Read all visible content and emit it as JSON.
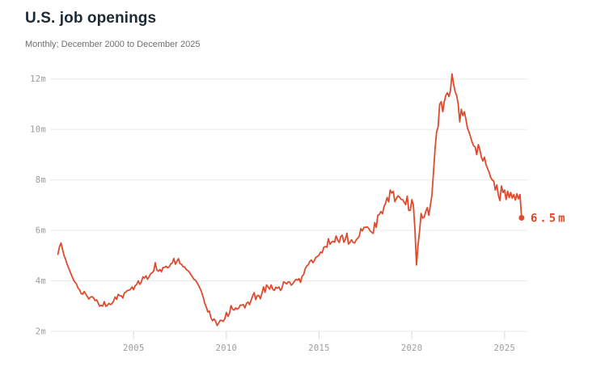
{
  "header": {
    "title": "U.S. job openings",
    "subtitle": "Monthly; December 2000 to December 2025"
  },
  "chart_data": {
    "type": "line",
    "title": "U.S. job openings",
    "subtitle": "Monthly; December 2000 to December 2025",
    "unit": "millions of job openings",
    "frequency": "monthly",
    "x_start": "December 2000",
    "x_end": "December 2025",
    "ylim": [
      2,
      12.4
    ],
    "grid": "horizontal",
    "legend": "none",
    "end_label": "6.5m",
    "last_value": 6.5,
    "colors": {
      "line": "#DD4B2E",
      "grid": "#ebebeb",
      "tick": "#d8d8d8",
      "axis_text": "#9b9b9b",
      "title_text": "#1c2b36",
      "subtitle_text": "#6b6f73"
    },
    "y_ticks": [
      {
        "value": 2,
        "label": "2m"
      },
      {
        "value": 4,
        "label": "4m"
      },
      {
        "value": 6,
        "label": "6m"
      },
      {
        "value": 8,
        "label": "8m"
      },
      {
        "value": 10,
        "label": "10m"
      },
      {
        "value": 12,
        "label": "12m"
      }
    ],
    "x_ticks": [
      {
        "year": 2005,
        "label": "2005"
      },
      {
        "year": 2010,
        "label": "2010"
      },
      {
        "year": 2015,
        "label": "2015"
      },
      {
        "year": 2020,
        "label": "2020"
      },
      {
        "year": 2025,
        "label": "2025"
      }
    ],
    "values_start_month": "2000-12",
    "values": [
      5.05,
      5.35,
      5.5,
      5.25,
      5.0,
      4.85,
      4.65,
      4.5,
      4.35,
      4.2,
      4.05,
      3.95,
      3.88,
      3.72,
      3.65,
      3.5,
      3.47,
      3.58,
      3.48,
      3.38,
      3.28,
      3.35,
      3.38,
      3.33,
      3.22,
      3.25,
      3.13,
      3.0,
      3.03,
      3.0,
      3.18,
      2.99,
      3.03,
      3.11,
      3.06,
      3.1,
      3.2,
      3.36,
      3.27,
      3.47,
      3.41,
      3.41,
      3.32,
      3.52,
      3.56,
      3.62,
      3.63,
      3.67,
      3.76,
      3.65,
      3.81,
      3.86,
      4.0,
      3.86,
      3.96,
      4.16,
      4.11,
      4.2,
      4.06,
      4.17,
      4.28,
      4.32,
      4.4,
      4.72,
      4.43,
      4.38,
      4.45,
      4.36,
      4.53,
      4.53,
      4.58,
      4.52,
      4.55,
      4.67,
      4.71,
      4.89,
      4.66,
      4.77,
      4.88,
      4.68,
      4.66,
      4.56,
      4.55,
      4.45,
      4.41,
      4.35,
      4.25,
      4.16,
      4.06,
      4.03,
      3.93,
      3.82,
      3.7,
      3.55,
      3.36,
      3.11,
      2.97,
      2.77,
      2.8,
      2.54,
      2.42,
      2.49,
      2.41,
      2.23,
      2.33,
      2.44,
      2.43,
      2.4,
      2.5,
      2.75,
      2.59,
      2.71,
      3.02,
      2.88,
      2.84,
      2.93,
      2.88,
      2.92,
      3.04,
      3.04,
      3.06,
      2.93,
      3.11,
      3.16,
      3.06,
      3.23,
      3.41,
      3.53,
      3.26,
      3.42,
      3.42,
      3.29,
      3.5,
      3.76,
      3.55,
      3.84,
      3.76,
      3.67,
      3.84,
      3.67,
      3.62,
      3.75,
      3.71,
      3.76,
      3.62,
      3.72,
      3.96,
      3.93,
      3.88,
      3.96,
      3.95,
      3.83,
      3.89,
      3.98,
      4.06,
      4.03,
      4.09,
      3.94,
      4.19,
      4.25,
      4.48,
      4.59,
      4.64,
      4.77,
      4.83,
      4.72,
      4.82,
      4.94,
      4.97,
      5.03,
      5.14,
      5.11,
      5.33,
      5.36,
      5.33,
      5.67,
      5.45,
      5.53,
      5.57,
      5.53,
      5.78,
      5.62,
      5.52,
      5.75,
      5.81,
      5.53,
      5.64,
      5.89,
      5.46,
      5.53,
      5.63,
      5.52,
      5.5,
      5.62,
      5.69,
      5.77,
      6.07,
      5.98,
      6.12,
      6.12,
      6.14,
      6.09,
      5.98,
      5.93,
      5.88,
      6.31,
      6.12,
      6.6,
      6.63,
      6.75,
      6.66,
      6.94,
      7.08,
      7.3,
      7.13,
      7.6,
      7.48,
      7.55,
      7.14,
      7.26,
      7.37,
      7.32,
      7.23,
      7.22,
      7.12,
      7.02,
      7.36,
      6.79,
      6.79,
      7.22,
      7.0,
      6.05,
      4.63,
      5.41,
      5.97,
      6.67,
      6.49,
      6.52,
      6.75,
      6.9,
      6.6,
      7.0,
      7.4,
      8.3,
      9.2,
      9.9,
      10.1,
      11.0,
      11.1,
      10.7,
      11.1,
      11.35,
      11.45,
      11.3,
      11.55,
      12.2,
      11.8,
      11.5,
      11.35,
      11.0,
      10.3,
      10.8,
      10.55,
      10.7,
      10.4,
      10.05,
      9.9,
      9.7,
      9.5,
      9.35,
      9.3,
      9.0,
      9.4,
      9.2,
      8.9,
      8.75,
      8.9,
      8.6,
      8.45,
      8.3,
      8.1,
      8.0,
      7.95,
      7.6,
      7.8,
      7.39,
      7.18,
      7.76,
      7.5,
      7.6,
      7.23,
      7.55,
      7.3,
      7.5,
      7.28,
      7.42,
      7.2,
      7.45,
      7.25,
      7.42,
      6.5
    ]
  }
}
